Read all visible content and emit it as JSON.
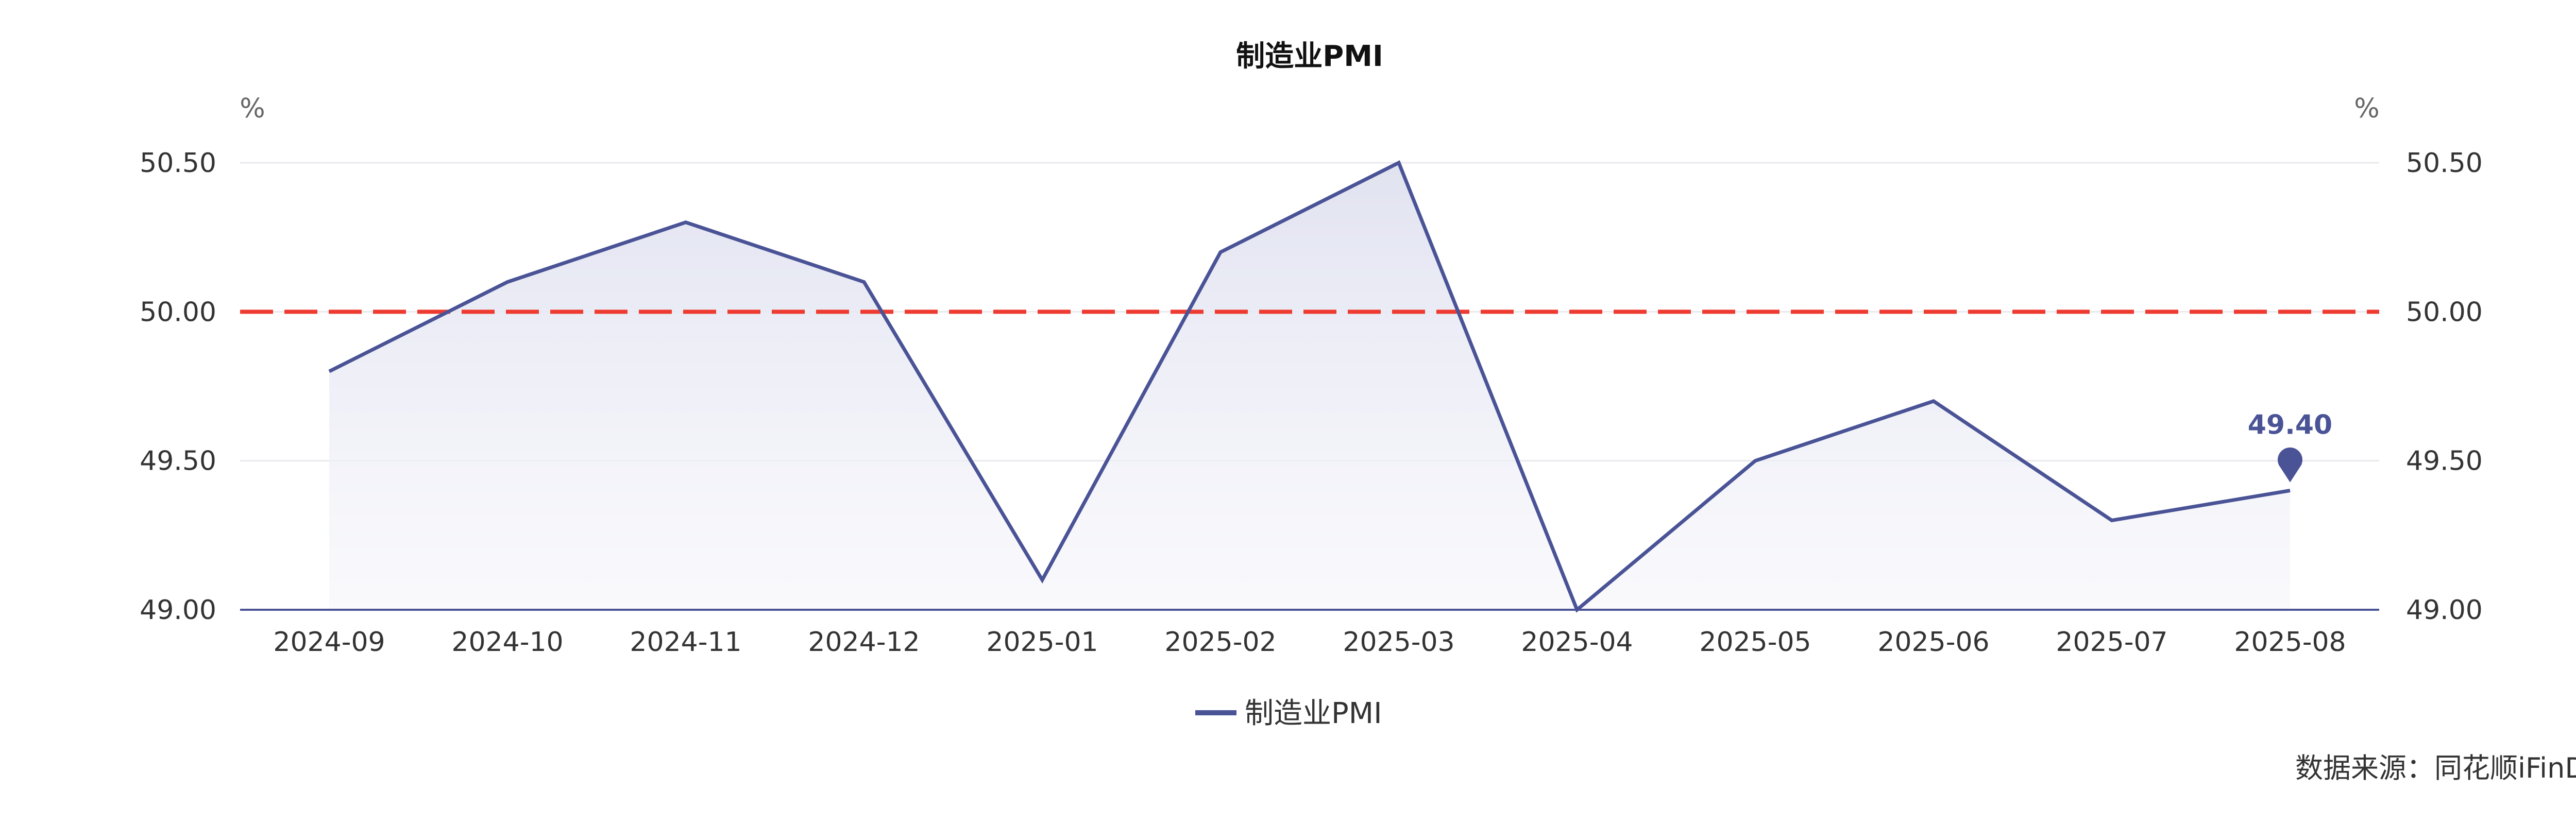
{
  "chart_data": {
    "type": "line",
    "title": "制造业PMI",
    "y_unit_left": "%",
    "y_unit_right": "%",
    "categories": [
      "2024-09",
      "2024-10",
      "2024-11",
      "2024-12",
      "2025-01",
      "2025-02",
      "2025-03",
      "2025-04",
      "2025-05",
      "2025-06",
      "2025-07",
      "2025-08"
    ],
    "series": [
      {
        "name": "制造业PMI",
        "values": [
          49.8,
          50.1,
          50.3,
          50.1,
          49.1,
          50.2,
          50.5,
          49.0,
          49.5,
          49.7,
          49.3,
          49.4
        ],
        "color": "#4a5396",
        "area_fill": true
      }
    ],
    "ylim": [
      49.0,
      50.5
    ],
    "y_ticks": [
      49.0,
      49.5,
      50.0,
      50.5
    ],
    "y_tick_labels": [
      "49.00",
      "49.50",
      "50.00",
      "50.50"
    ],
    "reference_line": {
      "value": 50.0,
      "color": "#ee3b31",
      "style": "dashed"
    },
    "last_point_label": "49.40",
    "grid": true,
    "legend_position": "bottom-center",
    "source_note": "数据来源：同花顺iFinD"
  }
}
